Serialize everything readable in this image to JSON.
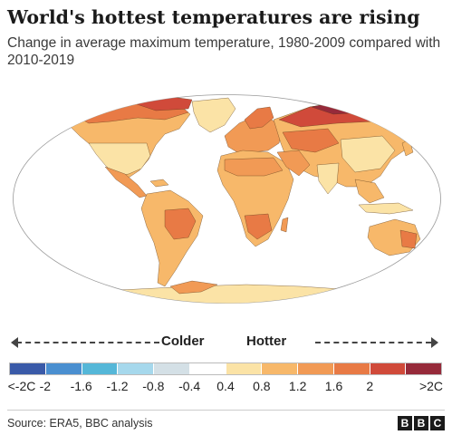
{
  "title": "World's hottest temperatures are rising",
  "subtitle": "Change in average maximum temperature, 1980-2009 compared with 2010-2019",
  "legend": {
    "colder_label": "Colder",
    "hotter_label": "Hotter",
    "bins": [
      {
        "color": "#3a5aa8"
      },
      {
        "color": "#4a8fd0"
      },
      {
        "color": "#55b7d8"
      },
      {
        "color": "#a6d8ec"
      },
      {
        "color": "#d4e0e6"
      },
      {
        "color": "#ffffff"
      },
      {
        "color": "#fbe3a6"
      },
      {
        "color": "#f7b86a"
      },
      {
        "color": "#f19a55"
      },
      {
        "color": "#e87a45"
      },
      {
        "color": "#d04a3a"
      },
      {
        "color": "#962a3a"
      }
    ],
    "ticks": [
      "<-2C",
      "-2",
      "-1.6",
      "-1.2",
      "-0.8",
      "-0.4",
      "0.4",
      "0.8",
      "1.2",
      "1.6",
      "2",
      ">2C"
    ]
  },
  "map_colors": {
    "ocean": "#ffffff",
    "outline": "#9a9a9a",
    "light": "#fbe3a6",
    "medium": "#f7b86a",
    "warm": "#f19a55",
    "hot": "#e87a45",
    "hotter": "#d04a3a",
    "extreme": "#962a3a",
    "border": "#5a3a1a"
  },
  "source": "Source: ERA5, BBC analysis",
  "brand": [
    "B",
    "B",
    "C"
  ]
}
